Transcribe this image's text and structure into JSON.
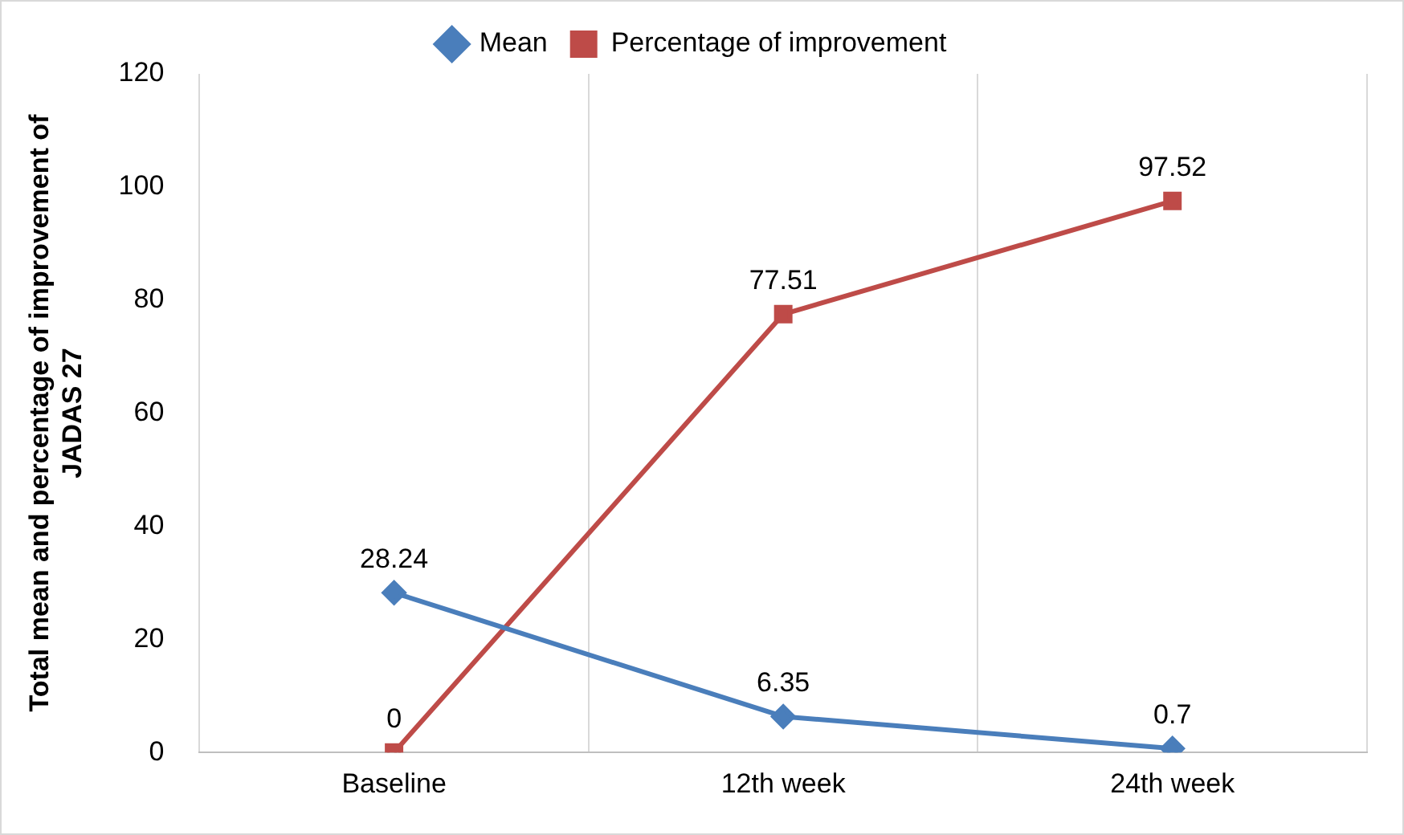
{
  "chart_data": {
    "type": "line",
    "ylabel": "Total mean and percentage of improvement of JADAS 27",
    "categories": [
      "Baseline",
      "12th week",
      "24th week"
    ],
    "series": [
      {
        "name": "Mean",
        "color": "#4a7ebb",
        "values": [
          28.24,
          6.35,
          0.7
        ],
        "marker": "diamond"
      },
      {
        "name": "Percentage of improvement",
        "color": "#be4b48",
        "values": [
          0,
          77.51,
          97.52
        ],
        "marker": "square"
      }
    ],
    "ylim": [
      0,
      120
    ],
    "yticks": [
      0,
      20,
      40,
      60,
      80,
      100,
      120
    ],
    "grid": "x",
    "legend": "top",
    "data_labels": true,
    "line_style": "solid"
  }
}
